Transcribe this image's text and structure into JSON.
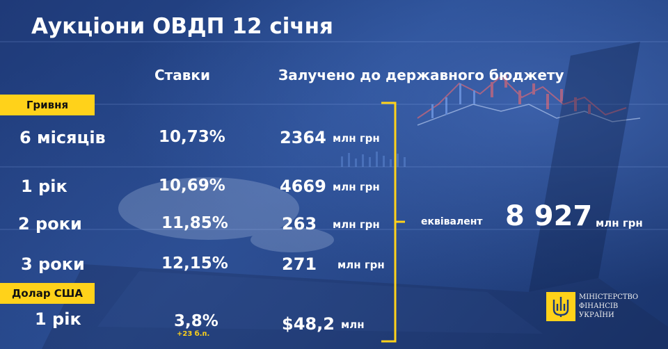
{
  "title": "Аукціони ОВДП 12 січня",
  "headers": {
    "rates": "Ставки",
    "raised": "Залучено до державного бюджету"
  },
  "sections": {
    "uah": "Гривня",
    "usd": "Долар США"
  },
  "rows": [
    {
      "term": "6 місяців",
      "rate": "10,73%",
      "amount": "2364",
      "unit": "млн грн"
    },
    {
      "term": "1 рік",
      "rate": "10,69%",
      "amount": "4669",
      "unit": "млн грн"
    },
    {
      "term": "2 роки",
      "rate": "11,85%",
      "amount": "263",
      "unit": "млн грн"
    },
    {
      "term": "3 роки",
      "rate": "12,15%",
      "amount": "271",
      "unit": "млн грн"
    },
    {
      "term": "1 рік",
      "rate": "3,8%",
      "rate_note": "+23 б.п.",
      "amount": "$48,2",
      "unit": "млн"
    }
  ],
  "total": {
    "label": "еквівалент",
    "value": "8 927",
    "unit": "млн грн"
  },
  "ministry": {
    "line1": "МІНІСТЕРСТВО",
    "line2": "ФІНАНСІВ",
    "line3": "УКРАЇНИ"
  },
  "colors": {
    "accent": "#ffd21a",
    "background": "#22427f",
    "text": "#ffffff"
  },
  "icons": {
    "ministry_logo": "trident-emblem-icon"
  }
}
